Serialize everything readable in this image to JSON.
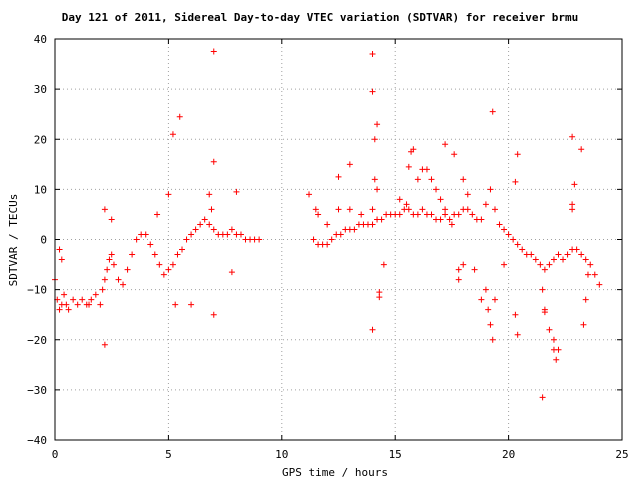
{
  "chart_data": {
    "type": "scatter",
    "title": "Day 121 of 2011, Sidereal Day-to-day VTEC variation (SDTVAR) for receiver brmu",
    "xlabel": "GPS time / hours",
    "ylabel": "SDTVAR / TECUs",
    "xlim": [
      0,
      25
    ],
    "ylim": [
      -40,
      40
    ],
    "x_ticks": [
      0,
      5,
      10,
      15,
      20,
      25
    ],
    "y_ticks": [
      -40,
      -30,
      -20,
      -10,
      0,
      10,
      20,
      30,
      40
    ],
    "x_tick_labels": [
      "0",
      "5",
      "10",
      "15",
      "20",
      "25"
    ],
    "y_tick_labels": [
      "−40",
      "−30",
      "−20",
      "−10",
      "0",
      "10",
      "20",
      "30",
      "40"
    ],
    "grid": true,
    "legend": "none",
    "marker": "plus",
    "color": "#ff0000",
    "gap_hours": [
      9.0,
      11.2
    ],
    "points": [
      [
        0.0,
        -8
      ],
      [
        0.1,
        -12
      ],
      [
        0.2,
        -14
      ],
      [
        0.3,
        -13
      ],
      [
        0.4,
        -11
      ],
      [
        0.5,
        -13
      ],
      [
        0.6,
        -14
      ],
      [
        0.8,
        -12
      ],
      [
        1.0,
        -13
      ],
      [
        1.2,
        -12
      ],
      [
        1.4,
        -13
      ],
      [
        1.6,
        -12
      ],
      [
        1.8,
        -11
      ],
      [
        2.0,
        -13
      ],
      [
        2.1,
        -10
      ],
      [
        2.2,
        -8
      ],
      [
        2.3,
        -6
      ],
      [
        2.4,
        -4
      ],
      [
        2.5,
        -3
      ],
      [
        2.6,
        -5
      ],
      [
        2.8,
        -8
      ],
      [
        3.0,
        -9
      ],
      [
        3.2,
        -6
      ],
      [
        3.4,
        -3
      ],
      [
        3.6,
        0
      ],
      [
        3.8,
        1
      ],
      [
        4.0,
        1
      ],
      [
        4.2,
        -1
      ],
      [
        4.4,
        -3
      ],
      [
        4.6,
        -5
      ],
      [
        4.8,
        -7
      ],
      [
        5.0,
        -6
      ],
      [
        5.2,
        -5
      ],
      [
        5.4,
        -3
      ],
      [
        5.6,
        -2
      ],
      [
        5.8,
        0
      ],
      [
        6.0,
        1
      ],
      [
        6.2,
        2
      ],
      [
        6.4,
        3
      ],
      [
        6.6,
        4
      ],
      [
        6.8,
        3
      ],
      [
        7.0,
        2
      ],
      [
        7.2,
        1
      ],
      [
        7.4,
        1
      ],
      [
        7.6,
        1
      ],
      [
        7.8,
        2
      ],
      [
        8.0,
        1
      ],
      [
        8.2,
        1
      ],
      [
        8.4,
        0
      ],
      [
        8.6,
        0
      ],
      [
        8.8,
        0
      ],
      [
        9.0,
        0
      ],
      [
        0.3,
        -4
      ],
      [
        0.2,
        -2
      ],
      [
        2.2,
        6
      ],
      [
        2.5,
        4
      ],
      [
        1.5,
        -13
      ],
      [
        2.2,
        -21
      ],
      [
        5.2,
        21
      ],
      [
        5.5,
        24.5
      ],
      [
        5.3,
        -13
      ],
      [
        6.0,
        -13
      ],
      [
        7.0,
        37.5
      ],
      [
        7.0,
        15.5
      ],
      [
        7.0,
        -15
      ],
      [
        6.8,
        9
      ],
      [
        6.9,
        6
      ],
      [
        8.0,
        9.5
      ],
      [
        7.8,
        -6.5
      ],
      [
        4.5,
        5
      ],
      [
        5.0,
        9
      ],
      [
        11.2,
        9
      ],
      [
        11.4,
        0
      ],
      [
        11.6,
        -1
      ],
      [
        11.8,
        -1
      ],
      [
        12.0,
        -1
      ],
      [
        12.2,
        0
      ],
      [
        12.4,
        1
      ],
      [
        12.6,
        1
      ],
      [
        12.8,
        2
      ],
      [
        13.0,
        2
      ],
      [
        13.2,
        2
      ],
      [
        13.4,
        3
      ],
      [
        13.6,
        3
      ],
      [
        13.8,
        3
      ],
      [
        14.0,
        3
      ],
      [
        14.2,
        4
      ],
      [
        14.4,
        4
      ],
      [
        14.6,
        5
      ],
      [
        14.8,
        5
      ],
      [
        15.0,
        5
      ],
      [
        15.2,
        5
      ],
      [
        15.4,
        6
      ],
      [
        15.6,
        6
      ],
      [
        15.8,
        5
      ],
      [
        16.0,
        5
      ],
      [
        16.2,
        6
      ],
      [
        16.4,
        5
      ],
      [
        16.6,
        5
      ],
      [
        16.8,
        4
      ],
      [
        17.0,
        4
      ],
      [
        17.2,
        5
      ],
      [
        17.4,
        4
      ],
      [
        17.6,
        5
      ],
      [
        17.8,
        5
      ],
      [
        18.0,
        6
      ],
      [
        18.2,
        6
      ],
      [
        18.4,
        5
      ],
      [
        18.6,
        4
      ],
      [
        18.8,
        4
      ],
      [
        19.0,
        7
      ],
      [
        19.2,
        10
      ],
      [
        19.4,
        6
      ],
      [
        19.6,
        3
      ],
      [
        19.8,
        2
      ],
      [
        20.0,
        1
      ],
      [
        20.2,
        0
      ],
      [
        20.4,
        -1
      ],
      [
        20.6,
        -2
      ],
      [
        20.8,
        -3
      ],
      [
        21.0,
        -3
      ],
      [
        21.2,
        -4
      ],
      [
        21.4,
        -5
      ],
      [
        21.6,
        -6
      ],
      [
        21.8,
        -5
      ],
      [
        22.0,
        -4
      ],
      [
        22.2,
        -3
      ],
      [
        22.4,
        -4
      ],
      [
        22.6,
        -3
      ],
      [
        22.8,
        -2
      ],
      [
        23.0,
        -2
      ],
      [
        23.2,
        -3
      ],
      [
        23.4,
        -4
      ],
      [
        23.6,
        -5
      ],
      [
        23.8,
        -7
      ],
      [
        24.0,
        -9
      ],
      [
        11.5,
        6
      ],
      [
        11.6,
        5
      ],
      [
        12.0,
        3
      ],
      [
        12.5,
        6
      ],
      [
        13.0,
        6
      ],
      [
        13.5,
        5
      ],
      [
        14.0,
        6
      ],
      [
        14.1,
        12
      ],
      [
        14.2,
        10
      ],
      [
        15.2,
        8
      ],
      [
        15.5,
        7
      ],
      [
        16.0,
        12
      ],
      [
        16.2,
        14
      ],
      [
        16.4,
        14
      ],
      [
        16.6,
        12
      ],
      [
        16.8,
        10
      ],
      [
        17.0,
        8
      ],
      [
        17.2,
        6
      ],
      [
        17.5,
        3
      ],
      [
        18.0,
        -5
      ],
      [
        18.5,
        -6
      ],
      [
        19.0,
        -10
      ],
      [
        19.1,
        -14
      ],
      [
        19.2,
        -17
      ],
      [
        19.3,
        -20
      ],
      [
        19.4,
        -12
      ],
      [
        21.5,
        -10
      ],
      [
        21.6,
        -14
      ],
      [
        21.8,
        -18
      ],
      [
        22.0,
        -22
      ],
      [
        22.1,
        -24
      ],
      [
        12.5,
        12.5
      ],
      [
        13.0,
        15
      ],
      [
        14.0,
        37
      ],
      [
        14.0,
        29.5
      ],
      [
        14.2,
        23
      ],
      [
        14.1,
        20
      ],
      [
        14.0,
        -18
      ],
      [
        14.3,
        -10.5
      ],
      [
        14.3,
        -11.5
      ],
      [
        14.5,
        -5
      ],
      [
        15.6,
        14.5
      ],
      [
        15.7,
        17.5
      ],
      [
        15.8,
        18
      ],
      [
        17.2,
        19
      ],
      [
        17.6,
        17
      ],
      [
        18.0,
        12
      ],
      [
        18.2,
        9
      ],
      [
        17.8,
        -6
      ],
      [
        17.8,
        -8
      ],
      [
        19.3,
        25.5
      ],
      [
        18.8,
        -12
      ],
      [
        20.4,
        17
      ],
      [
        20.3,
        11.5
      ],
      [
        20.3,
        -15
      ],
      [
        20.4,
        -19
      ],
      [
        19.8,
        -5
      ],
      [
        21.5,
        -31.5
      ],
      [
        21.6,
        -14.5
      ],
      [
        22.2,
        -22
      ],
      [
        22.0,
        -20
      ],
      [
        22.8,
        20.5
      ],
      [
        22.9,
        11
      ],
      [
        22.8,
        7
      ],
      [
        22.8,
        6
      ],
      [
        23.2,
        18
      ],
      [
        23.3,
        -17
      ],
      [
        23.4,
        -12
      ],
      [
        23.5,
        -7
      ]
    ]
  }
}
